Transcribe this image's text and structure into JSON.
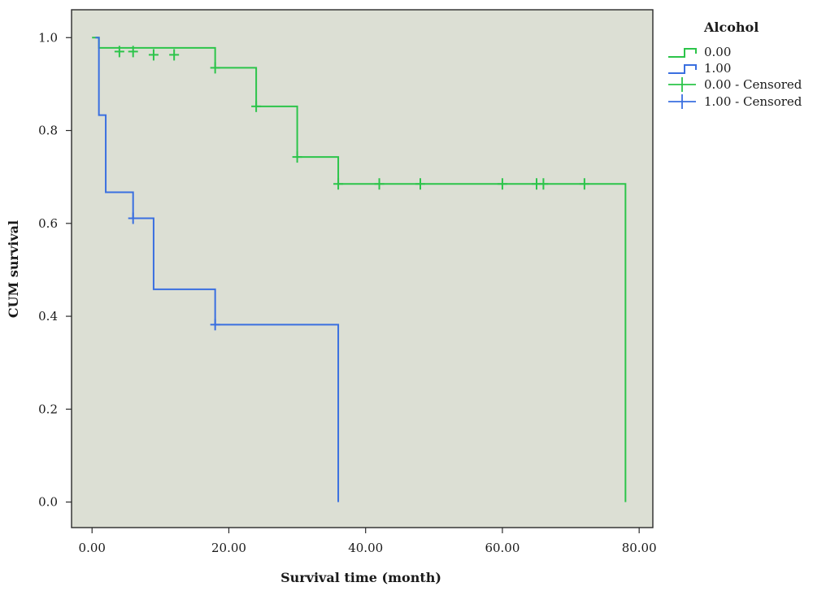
{
  "chart_data": {
    "type": "line",
    "subtype": "kaplan-meier step curve",
    "xlabel": "Survival time (month)",
    "ylabel": "CUM survival",
    "xlim": [
      -3,
      82
    ],
    "ylim": [
      -0.055,
      1.06
    ],
    "x_ticks": [
      0,
      20,
      40,
      60,
      80
    ],
    "x_tick_labels": [
      "0.00",
      "20.00",
      "40.00",
      "60.00",
      "80.00"
    ],
    "y_ticks": [
      0.0,
      0.2,
      0.4,
      0.6,
      0.8,
      1.0
    ],
    "y_tick_labels": [
      "0.0",
      "0.2",
      "0.4",
      "0.6",
      "0.8",
      "1.0"
    ],
    "grid": false,
    "plot_background": "#dcdfd4",
    "legend": {
      "title": "Alcohol",
      "placement": "right",
      "entries": [
        {
          "label": "0.00",
          "kind": "step",
          "color": "#2cc44a"
        },
        {
          "label": "1.00",
          "kind": "step",
          "color": "#3a6fe0"
        },
        {
          "label": "0.00 - Censored",
          "kind": "censor",
          "color": "#2cc44a"
        },
        {
          "label": "1.00 - Censored",
          "kind": "censor",
          "color": "#3a6fe0"
        }
      ]
    },
    "series": [
      {
        "name": "0.00",
        "color": "#2cc44a",
        "steps": [
          [
            0,
            1.0
          ],
          [
            1,
            0.978
          ],
          [
            18,
            0.935
          ],
          [
            24,
            0.852
          ],
          [
            30,
            0.743
          ],
          [
            36,
            0.685
          ],
          [
            78,
            0.0
          ]
        ],
        "end_x": 78,
        "censored": [
          [
            4,
            0.97
          ],
          [
            6,
            0.97
          ],
          [
            9,
            0.963
          ],
          [
            12,
            0.963
          ],
          [
            18,
            0.935
          ],
          [
            24,
            0.852
          ],
          [
            30,
            0.743
          ],
          [
            36,
            0.685
          ],
          [
            42,
            0.685
          ],
          [
            48,
            0.685
          ],
          [
            60,
            0.685
          ],
          [
            65,
            0.685
          ],
          [
            66,
            0.685
          ],
          [
            72,
            0.685
          ]
        ]
      },
      {
        "name": "1.00",
        "color": "#3a6fe0",
        "steps": [
          [
            0.5,
            1.0
          ],
          [
            1,
            0.833
          ],
          [
            2,
            0.667
          ],
          [
            6,
            0.611
          ],
          [
            9,
            0.458
          ],
          [
            18,
            0.382
          ],
          [
            36,
            0.0
          ]
        ],
        "end_x": 36,
        "censored": [
          [
            6,
            0.611
          ],
          [
            18,
            0.382
          ]
        ]
      }
    ]
  }
}
